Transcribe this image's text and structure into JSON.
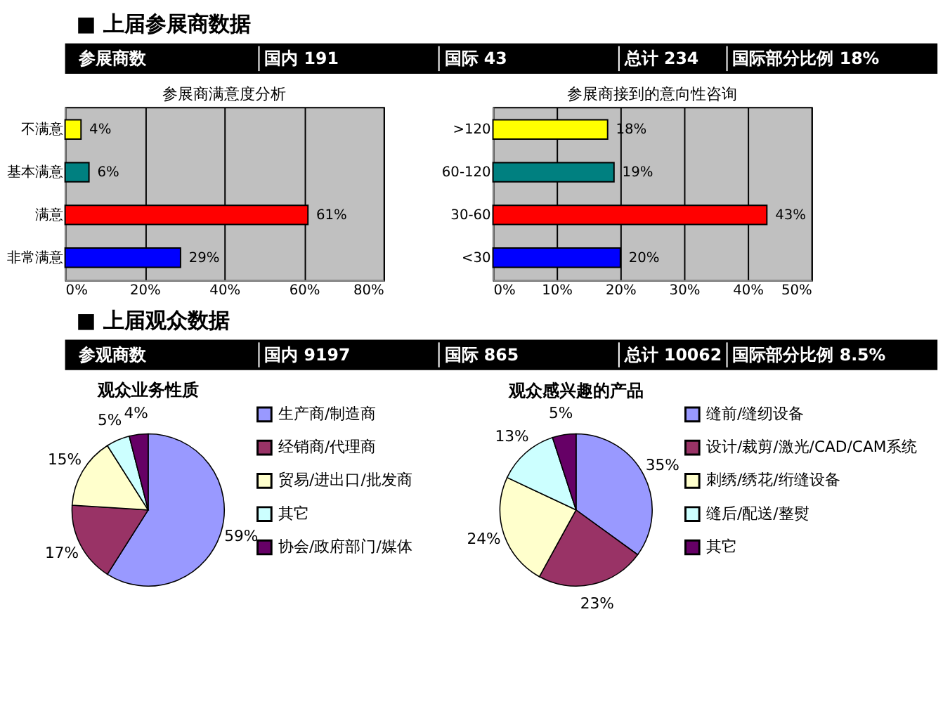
{
  "chart_data": [
    {
      "type": "bar",
      "orientation": "horizontal",
      "title": "参展商满意度分析",
      "annotations": [
        "■ 上届参展商数据",
        "参展商数",
        "国内 191",
        "国际 43",
        "总计 234",
        "国际部分比例 18%"
      ],
      "categories": [
        "不满意",
        "基本满意",
        "满意",
        "非常满意"
      ],
      "values": [
        4,
        6,
        61,
        29
      ],
      "value_labels": [
        "4%",
        "6%",
        "61%",
        "29%"
      ],
      "colors": [
        "#ffff00",
        "#008080",
        "#ff0000",
        "#0000ff"
      ],
      "xlim": [
        0,
        80
      ],
      "xticks": [
        {
          "value": 0,
          "label": "0%"
        },
        {
          "value": 20,
          "label": "20%"
        },
        {
          "value": 40,
          "label": "40%"
        },
        {
          "value": 60,
          "label": "60%"
        },
        {
          "value": 80,
          "label": "80%"
        }
      ],
      "grid": "x"
    },
    {
      "type": "bar",
      "orientation": "horizontal",
      "title": "参展商接到的意向性咨询",
      "categories": [
        ">120",
        "60-120",
        "30-60",
        "<30"
      ],
      "values": [
        18,
        19,
        43,
        20
      ],
      "value_labels": [
        "18%",
        "19%",
        "43%",
        "20%"
      ],
      "colors": [
        "#ffff00",
        "#008080",
        "#ff0000",
        "#0000ff"
      ],
      "xlim": [
        0,
        50
      ],
      "xticks": [
        {
          "value": 0,
          "label": "0%"
        },
        {
          "value": 10,
          "label": "10%"
        },
        {
          "value": 20,
          "label": "20%"
        },
        {
          "value": 30,
          "label": "30%"
        },
        {
          "value": 40,
          "label": "40%"
        },
        {
          "value": 50,
          "label": "50%"
        }
      ],
      "grid": "x"
    },
    {
      "type": "pie",
      "title": "观众业务性质",
      "annotations": [
        "■ 上届观众数据",
        "参观商数",
        "国内 9197",
        "国际 865",
        "总计 10062",
        "国际部分比例 8.5%"
      ],
      "categories": [
        "生产商/制造商",
        "经销商/代理商",
        "贸易/进出口/批发商",
        "其它",
        "协会/政府部门/媒体"
      ],
      "values": [
        59,
        17,
        15,
        5,
        4
      ],
      "value_labels": [
        "59%",
        "17%",
        "15%",
        "5%",
        "4%"
      ],
      "colors": [
        "#9999ff",
        "#993366",
        "#ffffcc",
        "#ccffff",
        "#660066"
      ],
      "legend": "right"
    },
    {
      "type": "pie",
      "title": "观众感兴趣的产品",
      "categories": [
        "缝前/缝纫设备",
        "设计/裁剪/激光/CAD/CAM系统",
        "刺绣/绣花/绗缝设备",
        "缝后/配送/整熨",
        "其它"
      ],
      "values": [
        35,
        23,
        24,
        13,
        5
      ],
      "value_labels": [
        "35%",
        "23%",
        "24%",
        "13%",
        "5%"
      ],
      "colors": [
        "#9999ff",
        "#993366",
        "#ffffcc",
        "#ccffff",
        "#660066"
      ],
      "legend": "right"
    }
  ]
}
